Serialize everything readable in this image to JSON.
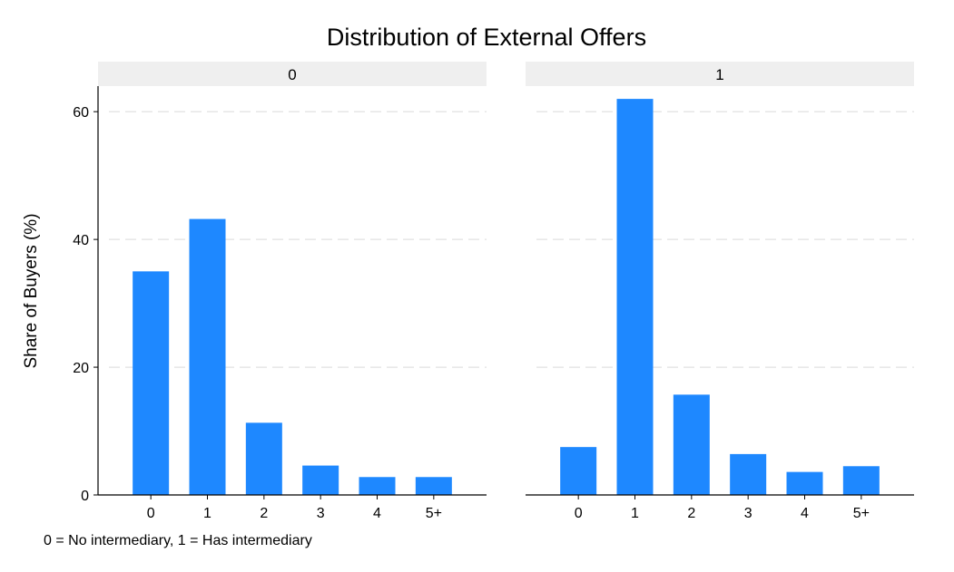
{
  "chart_data": {
    "type": "bar",
    "title": "Distribution of External Offers",
    "ylabel": "Share of Buyers (%)",
    "xlabel": "",
    "categories": [
      "0",
      "1",
      "2",
      "3",
      "4",
      "5+"
    ],
    "ylim": [
      0,
      64
    ],
    "yticks": [
      0,
      20,
      40,
      60
    ],
    "grid": true,
    "bar_color": "#1E88FF",
    "panel_header_color": "#EFEFEF",
    "gridline_color": "#E6E6E6",
    "note": "0 = No intermediary, 1 = Has intermediary",
    "panels": [
      {
        "label": "0",
        "values": [
          35.0,
          43.2,
          11.3,
          4.6,
          2.8,
          2.8
        ]
      },
      {
        "label": "1",
        "values": [
          7.5,
          62.0,
          15.7,
          6.4,
          3.6,
          4.5
        ]
      }
    ]
  }
}
